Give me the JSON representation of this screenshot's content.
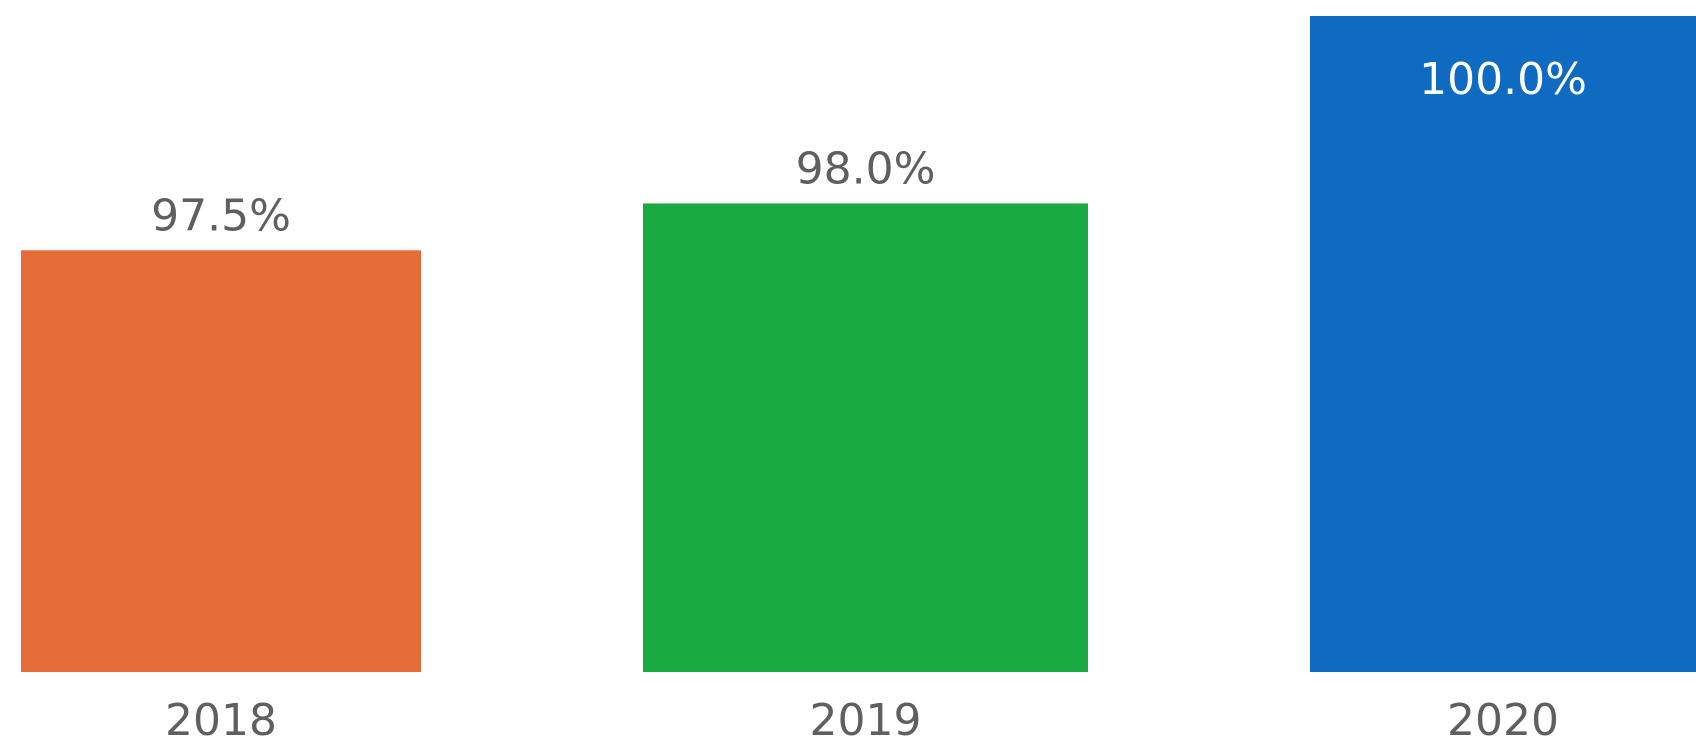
{
  "chart_data": {
    "type": "bar",
    "categories": [
      "2018",
      "2019",
      "2020"
    ],
    "values": [
      97.5,
      98.0,
      100.0
    ],
    "value_labels": [
      "97.5%",
      "98.0%",
      "100.0%"
    ],
    "colors": [
      "#E66C37",
      "#1AAA42",
      "#0F6AC1"
    ],
    "ylim": [
      93.0,
      100.0
    ],
    "grid": false,
    "legend": "none"
  }
}
